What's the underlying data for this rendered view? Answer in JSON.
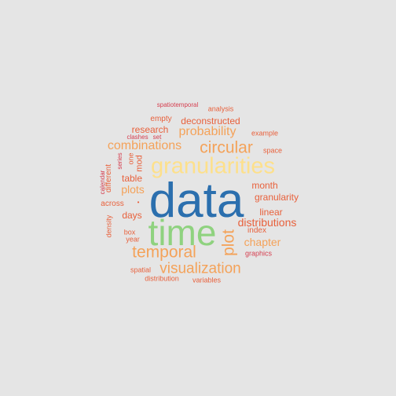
{
  "colors": {
    "background": "#e5e5e5",
    "blue": "#2b6fae",
    "green": "#8fd27f",
    "yellow": "#fde08b",
    "orange": "#f4a259",
    "red_orange": "#e8613c",
    "red": "#d53e4f"
  },
  "words": [
    {
      "text": "data",
      "color": "#2b6fae",
      "size": 62
    },
    {
      "text": "time",
      "color": "#8fd27f",
      "size": 46
    },
    {
      "text": "granularities",
      "color": "#fde08b",
      "size": 29
    },
    {
      "text": "circular",
      "color": "#f4a259",
      "size": 21
    },
    {
      "text": "temporal",
      "color": "#f4a259",
      "size": 21
    },
    {
      "text": "visualization",
      "color": "#f4a259",
      "size": 19
    },
    {
      "text": "plot",
      "color": "#f4a259",
      "size": 21,
      "vertical": true
    },
    {
      "text": "combinations",
      "color": "#f4a259",
      "size": 16
    },
    {
      "text": "probability",
      "color": "#f4a259",
      "size": 16
    },
    {
      "text": "distributions",
      "color": "#e8613c",
      "size": 14
    },
    {
      "text": "chapter",
      "color": "#f4a259",
      "size": 14
    },
    {
      "text": "plots",
      "color": "#f4a259",
      "size": 14
    },
    {
      "text": "deconstructed",
      "color": "#e8613c",
      "size": 12
    },
    {
      "text": "research",
      "color": "#e8613c",
      "size": 12
    },
    {
      "text": "granularity",
      "color": "#e8613c",
      "size": 12
    },
    {
      "text": "month",
      "color": "#e8613c",
      "size": 12
    },
    {
      "text": "linear",
      "color": "#e8613c",
      "size": 12
    },
    {
      "text": "days",
      "color": "#e8613c",
      "size": 12
    },
    {
      "text": "table",
      "color": "#e8613c",
      "size": 12
    },
    {
      "text": "empty",
      "color": "#e8613c",
      "size": 10
    },
    {
      "text": "across",
      "color": "#e8613c",
      "size": 10
    },
    {
      "text": "index",
      "color": "#e8613c",
      "size": 10
    },
    {
      "text": "mod",
      "color": "#e8613c",
      "size": 11,
      "vertical": true
    },
    {
      "text": "different",
      "color": "#e8613c",
      "size": 10,
      "vertical": true
    },
    {
      "text": "one",
      "color": "#e8613c",
      "size": 9,
      "vertical": true
    },
    {
      "text": "series",
      "color": "#d53e4f",
      "size": 8,
      "vertical": true
    },
    {
      "text": "calendar",
      "color": "#d53e4f",
      "size": 8,
      "vertical": true
    },
    {
      "text": "density",
      "color": "#e8613c",
      "size": 9,
      "vertical": true
    },
    {
      "text": "example",
      "color": "#e8613c",
      "size": 9
    },
    {
      "text": "space",
      "color": "#e8613c",
      "size": 9
    },
    {
      "text": "graphics",
      "color": "#d53e4f",
      "size": 9
    },
    {
      "text": "analysis",
      "color": "#e8613c",
      "size": 9
    },
    {
      "text": "spatiotemporal",
      "color": "#d53e4f",
      "size": 8
    },
    {
      "text": "clashes",
      "color": "#d53e4f",
      "size": 8
    },
    {
      "text": "set",
      "color": "#d53e4f",
      "size": 8
    },
    {
      "text": "box",
      "color": "#e8613c",
      "size": 9
    },
    {
      "text": "year",
      "color": "#e8613c",
      "size": 9
    },
    {
      "text": "spatial",
      "color": "#e8613c",
      "size": 9
    },
    {
      "text": "distribution",
      "color": "#e8613c",
      "size": 9
    },
    {
      "text": "variables",
      "color": "#e8613c",
      "size": 9
    },
    {
      "text": "•",
      "color": "#e8613c",
      "size": 8
    }
  ]
}
